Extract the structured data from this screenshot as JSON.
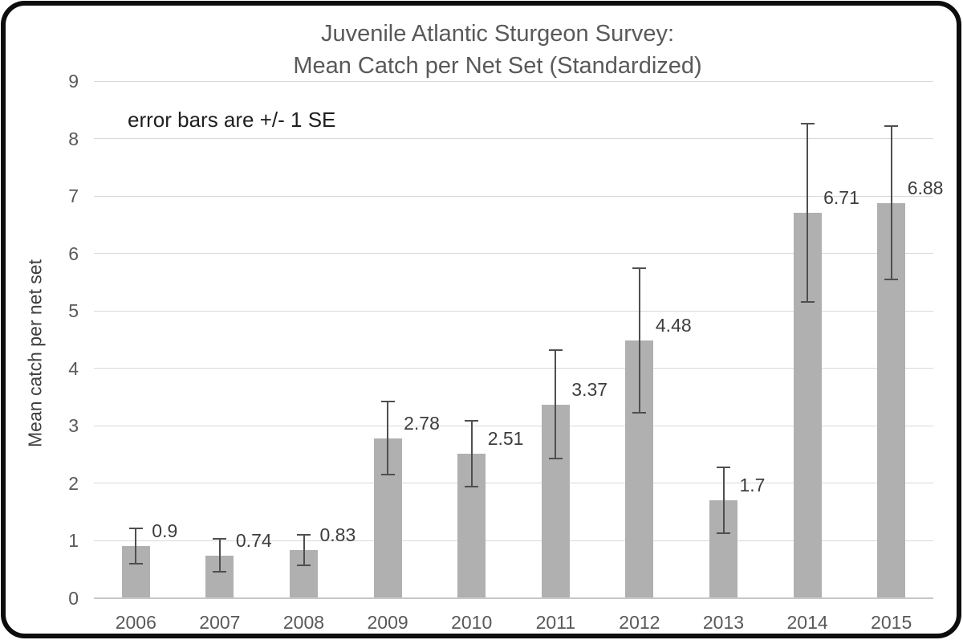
{
  "frame": {
    "border_color": "#0d0d0d",
    "background": "#ffffff"
  },
  "chart_data": {
    "type": "bar",
    "title": "Juvenile Atlantic Sturgeon Survey:",
    "subtitle": "Mean Catch per Net Set (Standardized)",
    "annotation": "error bars are +/- 1 SE",
    "categories": [
      "2006",
      "2007",
      "2008",
      "2009",
      "2010",
      "2011",
      "2012",
      "2013",
      "2014",
      "2015"
    ],
    "values": [
      0.9,
      0.74,
      0.83,
      2.78,
      2.51,
      3.37,
      4.48,
      1.7,
      6.71,
      6.88
    ],
    "value_labels": [
      "0.9",
      "0.74",
      "0.83",
      "2.78",
      "2.51",
      "3.37",
      "4.48",
      "1.7",
      "6.71",
      "6.88"
    ],
    "error_se": [
      0.31,
      0.29,
      0.27,
      0.64,
      0.57,
      0.95,
      1.26,
      0.57,
      1.55,
      1.34
    ],
    "xlabel": "",
    "ylabel": "Mean catch per net set",
    "ylim": [
      0,
      9
    ],
    "yticks": [
      0,
      1,
      2,
      3,
      4,
      5,
      6,
      7,
      8,
      9
    ],
    "grid": true,
    "legend": false,
    "colors": {
      "bar": "#b0b0b0",
      "gridline": "#d9d9d9",
      "axis_line": "#c8c8c8",
      "error_bar": "#4f4f4f",
      "title_text": "#595959",
      "tick_text": "#595959",
      "value_text": "#3d3d3d",
      "annotation_text": "#1f1f1f",
      "ylabel_text": "#404040"
    }
  }
}
